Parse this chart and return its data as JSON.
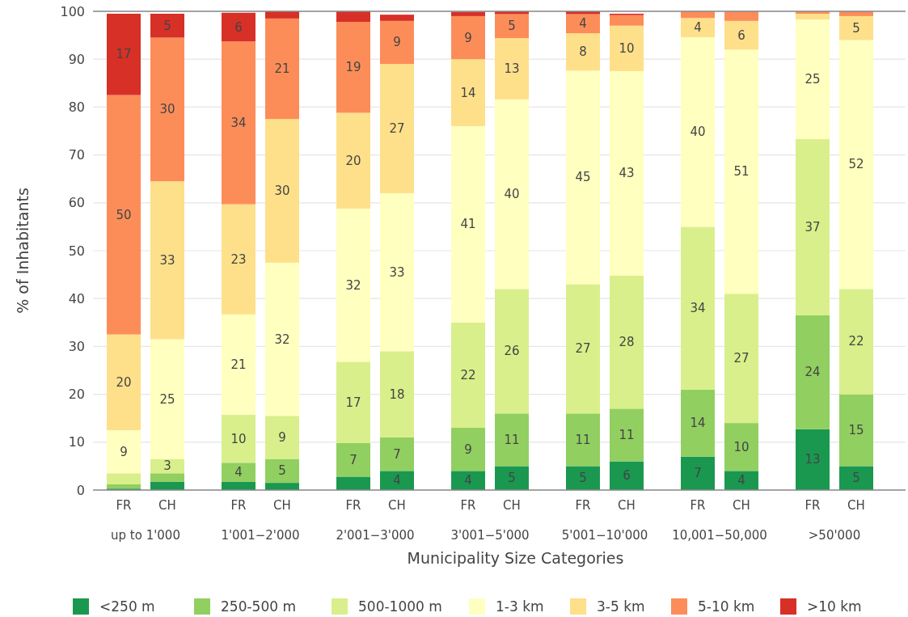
{
  "chart_data": {
    "type": "bar",
    "stacked": true,
    "xlabel": "Municipality Size Categories",
    "ylabel": "% of Inhabitants",
    "categories": [
      "FR",
      "CH",
      "FR",
      "CH",
      "FR",
      "CH",
      "FR",
      "CH",
      "FR",
      "CH",
      "FR",
      "CH",
      "FR",
      "CH"
    ],
    "annotations": [
      "up to 1'000",
      "1'001−2'000",
      "2'001−3'000",
      "3'001−5'000",
      "5'001−10'000",
      "10,001−50,000",
      ">50'000"
    ],
    "ylim": [
      0,
      100
    ],
    "yticks": [
      0,
      10,
      20,
      30,
      40,
      50,
      60,
      70,
      80,
      90,
      100
    ],
    "grid": "y",
    "legend": "bottom",
    "series": [
      {
        "name": "<250 m",
        "color": "#1a9850",
        "values": [
          0.3,
          1.7,
          1.7,
          1.5,
          2.8,
          4,
          4,
          5,
          5,
          6,
          7,
          4,
          12.7,
          5
        ],
        "value_labels": [
          null,
          null,
          null,
          null,
          null,
          "4",
          "4",
          "5",
          "5",
          "6",
          "7",
          "4",
          "13",
          "5"
        ]
      },
      {
        "name": "250-500 m",
        "color": "#91cf60",
        "values": [
          0.9,
          1.8,
          4,
          5,
          7,
          7,
          9,
          11,
          11,
          11,
          14,
          10,
          23.8,
          15
        ],
        "value_labels": [
          null,
          null,
          "4",
          "5",
          "7",
          "7",
          "9",
          "11",
          "11",
          "11",
          "14",
          "10",
          "24",
          "15"
        ]
      },
      {
        "name": "500-1000 m",
        "color": "#d9ef8b",
        "values": [
          2.3,
          3,
          10,
          9,
          17,
          18,
          22,
          26,
          27,
          27.8,
          34,
          27,
          36.8,
          22
        ],
        "value_labels": [
          null,
          "3",
          "10",
          "9",
          "17",
          "18",
          "22",
          "26",
          "27",
          "28",
          "34",
          "27",
          "37",
          "22"
        ]
      },
      {
        "name": "1-3 km",
        "color": "#ffffbf",
        "values": [
          9,
          25,
          21,
          32,
          32,
          33,
          41,
          39.6,
          44.6,
          42.7,
          39.6,
          51,
          25,
          52
        ],
        "value_labels": [
          "9",
          "25",
          "21",
          "32",
          "32",
          "33",
          "41",
          "40",
          "45",
          "43",
          "40",
          "51",
          "25",
          "52"
        ]
      },
      {
        "name": "3-5 km",
        "color": "#fee08b",
        "values": [
          20,
          33,
          23,
          30,
          20,
          27,
          14,
          12.8,
          7.8,
          9.5,
          4,
          6,
          1.2,
          5
        ],
        "value_labels": [
          "20",
          "33",
          "23",
          "30",
          "20",
          "27",
          "14",
          "13",
          "8",
          "10",
          "4",
          "6",
          null,
          "5"
        ]
      },
      {
        "name": "5-10 km",
        "color": "#fc8d59",
        "values": [
          50,
          30,
          34,
          21,
          19,
          9,
          9,
          5,
          4,
          2.2,
          1.4,
          2,
          0.5,
          1
        ],
        "value_labels": [
          "50",
          "30",
          "34",
          "21",
          "19",
          "9",
          "9",
          "5",
          "4",
          null,
          null,
          null,
          null,
          null
        ]
      },
      {
        "name": ">10 km",
        "color": "#d73027",
        "values": [
          17,
          5,
          6,
          1.5,
          2.2,
          1.3,
          0.9,
          0.6,
          0.6,
          0.3,
          0,
          0,
          0,
          0
        ],
        "value_labels": [
          "17",
          "5",
          "6",
          null,
          null,
          null,
          null,
          null,
          null,
          null,
          null,
          null,
          null,
          null
        ]
      }
    ]
  }
}
